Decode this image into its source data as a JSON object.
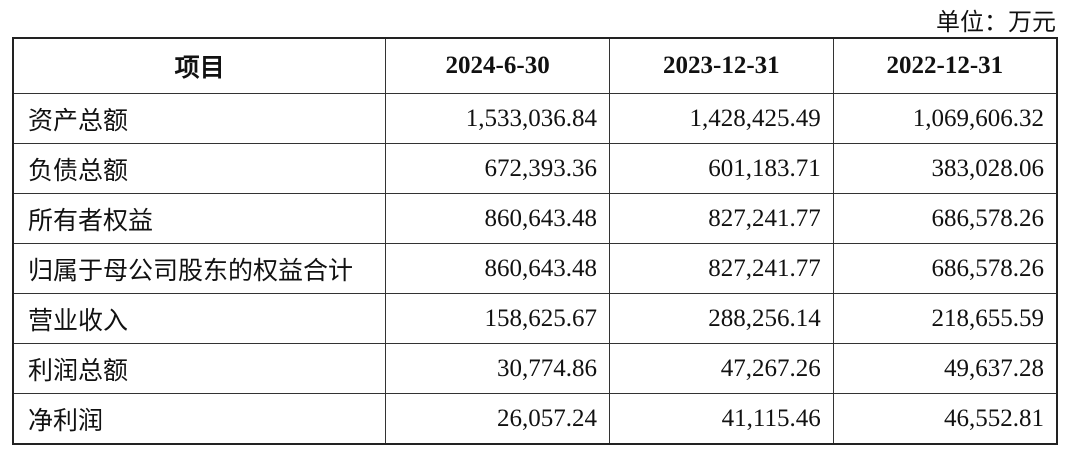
{
  "unit": "单位：万元",
  "table": {
    "header": [
      "项目",
      "2024-6-30",
      "2023-12-31",
      "2022-12-31"
    ],
    "rows": [
      [
        "资产总额",
        "1,533,036.84",
        "1,428,425.49",
        "1,069,606.32"
      ],
      [
        "负债总额",
        "672,393.36",
        "601,183.71",
        "383,028.06"
      ],
      [
        "所有者权益",
        "860,643.48",
        "827,241.77",
        "686,578.26"
      ],
      [
        "归属于母公司股东的权益合计",
        "860,643.48",
        "827,241.77",
        "686,578.26"
      ],
      [
        "营业收入",
        "158,625.67",
        "288,256.14",
        "218,655.59"
      ],
      [
        "利润总额",
        "30,774.86",
        "47,267.26",
        "49,637.28"
      ],
      [
        "净利润",
        "26,057.24",
        "41,115.46",
        "46,552.81"
      ]
    ]
  }
}
